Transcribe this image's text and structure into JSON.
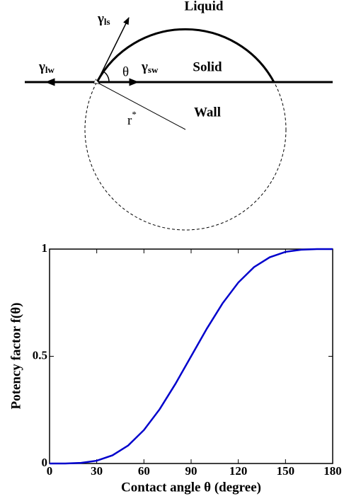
{
  "diagram": {
    "liquid": "Liquid",
    "solid": "Solid",
    "wall": "Wall",
    "theta": "θ",
    "gamma_ls": {
      "symbol": "γ",
      "sub": "ls"
    },
    "gamma_lw": {
      "symbol": "γ",
      "sub": "lw"
    },
    "gamma_sw": {
      "symbol": "γ",
      "sub": "sw"
    },
    "radius": {
      "symbol": "r",
      "sup": "*"
    }
  },
  "chart_data": {
    "type": "line",
    "x_label": "Contact angle θ (degree)",
    "y_label": "Potency factor f(θ)",
    "x": [
      0,
      10,
      20,
      30,
      40,
      50,
      60,
      70,
      80,
      90,
      100,
      110,
      120,
      130,
      140,
      150,
      160,
      170,
      180
    ],
    "series": [
      {
        "color": "#0000cc",
        "values": [
          0,
          0.0002,
          0.003,
          0.013,
          0.038,
          0.084,
          0.156,
          0.253,
          0.371,
          0.5,
          0.629,
          0.747,
          0.844,
          0.916,
          0.962,
          0.987,
          0.997,
          1.0,
          1
        ]
      }
    ],
    "xlim": [
      0,
      180
    ],
    "xticks": [
      0,
      30,
      60,
      90,
      120,
      150,
      180
    ],
    "ylim": [
      0,
      1
    ],
    "yticks": [
      0,
      0.5,
      1
    ]
  }
}
